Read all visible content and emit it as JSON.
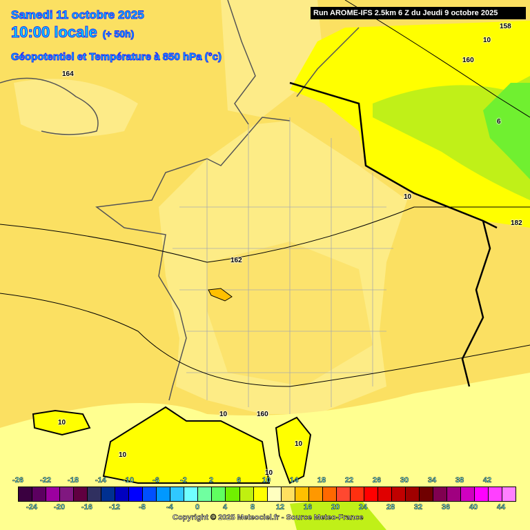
{
  "header": {
    "date": "Samedi 11 octobre 2025",
    "time": "10:00 locale",
    "lead": "(+ 50h)",
    "parameter": "Géopotentiel et Température à 850 hPa (°c)",
    "run": "Run AROME-IFS 2.5km 6 Z du Jeudi 9 octobre 2025"
  },
  "map_labels": [
    "164",
    "162",
    "160",
    "158",
    "160",
    "10",
    "6",
    "10",
    "182",
    "10",
    "10",
    "10",
    "160",
    "10",
    "10"
  ],
  "legend": {
    "unit": "°c",
    "top_labels": [
      "-26",
      "-22",
      "-18",
      "-14",
      "-10",
      "-6",
      "-2",
      "2",
      "6",
      "10",
      "14",
      "18",
      "22",
      "26",
      "30",
      "34",
      "38",
      "42"
    ],
    "bottom_labels": [
      "-24",
      "-20",
      "-16",
      "-12",
      "-8",
      "-4",
      "0",
      "4",
      "8",
      "12",
      "16",
      "20",
      "24",
      "28",
      "32",
      "36",
      "40",
      "44"
    ],
    "colors": [
      "#3a0040",
      "#5c0060",
      "#9c00a0",
      "#801880",
      "#600040",
      "#303060",
      "#003090",
      "#0000c0",
      "#0000ff",
      "#0050ff",
      "#0098ff",
      "#30c8ff",
      "#70ffff",
      "#70ffa0",
      "#60ff60",
      "#70f000",
      "#c0f010",
      "#ffff00",
      "#ffffc0",
      "#ffe060",
      "#ffc000",
      "#ff9800",
      "#ff6800",
      "#ff4830",
      "#ff3010",
      "#ff0000",
      "#e00000",
      "#c00000",
      "#a00000",
      "#700000",
      "#800050",
      "#a00080",
      "#d000c0",
      "#ff00ff",
      "#ff40ff",
      "#ff80ff"
    ]
  },
  "copyright": "Copyright © 2025 Meteociel.fr - Source Meteo-France",
  "colors": {
    "warm_bg": "#fbe062",
    "france_pale": "#fdeb80",
    "germany": "#ffff00",
    "green": "#a0f030",
    "sea_south": "#ffff90",
    "title": "#00e0ff"
  }
}
